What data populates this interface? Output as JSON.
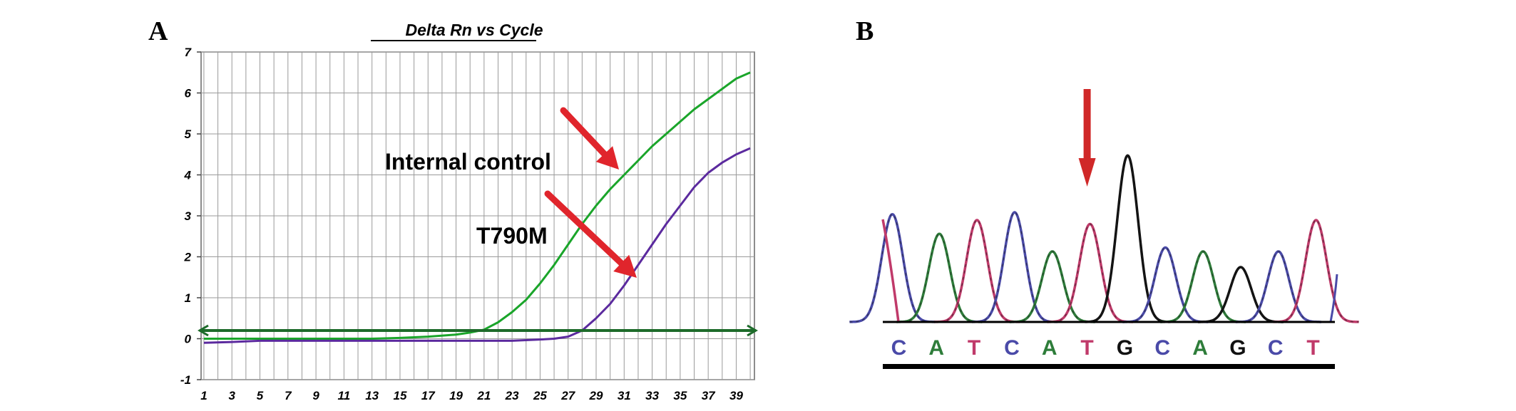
{
  "panel_labels": {
    "a": "A",
    "b": "B"
  },
  "chart_data": [
    {
      "type": "line",
      "title": "Delta Rn vs Cycle",
      "xlabel": "",
      "ylabel": "",
      "x_tick_labels": [
        "1",
        "3",
        "5",
        "7",
        "9",
        "11",
        "13",
        "15",
        "17",
        "19",
        "21",
        "23",
        "25",
        "27",
        "29",
        "31",
        "33",
        "35",
        "37",
        "39"
      ],
      "y_tick_labels": [
        "-1",
        "0",
        "1",
        "2",
        "3",
        "4",
        "5",
        "6",
        "7"
      ],
      "xlim": [
        1,
        40
      ],
      "ylim": [
        -1,
        7
      ],
      "grid": true,
      "threshold": 0.2,
      "series": [
        {
          "name": "Internal control",
          "color": "#1aa52a",
          "x": [
            1,
            3,
            5,
            7,
            9,
            11,
            13,
            15,
            17,
            19,
            20,
            21,
            22,
            23,
            24,
            25,
            26,
            27,
            28,
            29,
            30,
            31,
            32,
            33,
            34,
            35,
            36,
            37,
            38,
            39,
            40
          ],
          "y": [
            0.0,
            0.0,
            0.0,
            0.0,
            0.0,
            0.0,
            0.0,
            0.02,
            0.05,
            0.1,
            0.15,
            0.22,
            0.4,
            0.65,
            0.95,
            1.35,
            1.8,
            2.3,
            2.8,
            3.25,
            3.65,
            4.0,
            4.35,
            4.7,
            5.0,
            5.3,
            5.6,
            5.85,
            6.1,
            6.35,
            6.5
          ]
        },
        {
          "name": "T790M",
          "color": "#5b2a9e",
          "x": [
            1,
            3,
            5,
            7,
            9,
            11,
            13,
            15,
            17,
            19,
            21,
            23,
            25,
            26,
            27,
            28,
            29,
            30,
            31,
            32,
            33,
            34,
            35,
            36,
            37,
            38,
            39,
            40
          ],
          "y": [
            -0.1,
            -0.08,
            -0.05,
            -0.05,
            -0.05,
            -0.05,
            -0.05,
            -0.05,
            -0.05,
            -0.05,
            -0.05,
            -0.05,
            -0.02,
            0.0,
            0.05,
            0.2,
            0.5,
            0.85,
            1.3,
            1.8,
            2.3,
            2.8,
            3.25,
            3.7,
            4.05,
            4.3,
            4.5,
            4.65
          ]
        }
      ],
      "annotations": [
        {
          "text": "Internal control",
          "arrow_to_series": "Internal control"
        },
        {
          "text": "T790M",
          "arrow_to_series": "T790M"
        }
      ]
    },
    {
      "type": "line",
      "title": "",
      "base_sequence": [
        {
          "base": "C",
          "color": "#4a4aa8"
        },
        {
          "base": "A",
          "color": "#2e7d3a"
        },
        {
          "base": "T",
          "color": "#c03a6a"
        },
        {
          "base": "C",
          "color": "#4a4aa8"
        },
        {
          "base": "A",
          "color": "#2e7d3a"
        },
        {
          "base": "T",
          "color": "#c03a6a"
        },
        {
          "base": "G",
          "color": "#111111"
        },
        {
          "base": "C",
          "color": "#4a4aa8"
        },
        {
          "base": "A",
          "color": "#2e7d3a"
        },
        {
          "base": "G",
          "color": "#111111"
        },
        {
          "base": "C",
          "color": "#4a4aa8"
        },
        {
          "base": "T",
          "color": "#c03a6a"
        }
      ],
      "peak_heights": [
        0.55,
        0.45,
        0.52,
        0.56,
        0.36,
        0.5,
        0.85,
        0.38,
        0.36,
        0.28,
        0.36,
        0.52
      ],
      "marked_base_index": 5,
      "arrow_color": "#d02828"
    }
  ]
}
